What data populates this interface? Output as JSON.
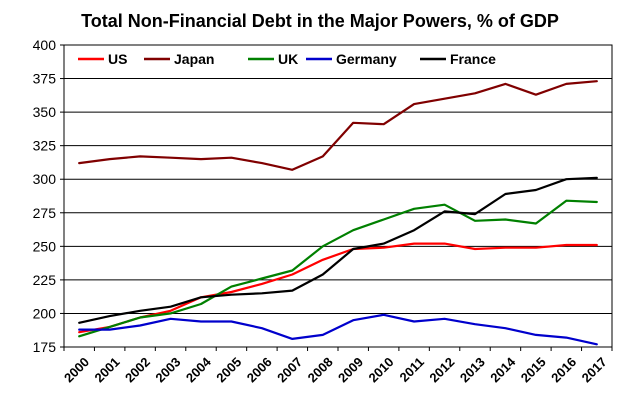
{
  "chart_data": {
    "type": "line",
    "title": "Total Non-Financial Debt in the Major Powers, % of GDP",
    "xlabel": "",
    "ylabel": "",
    "categories": [
      "2000",
      "2001",
      "2002",
      "2003",
      "2004",
      "2005",
      "2006",
      "2007",
      "2008",
      "2009",
      "2010",
      "2011",
      "2012",
      "2013",
      "2014",
      "2015",
      "2016",
      "2017"
    ],
    "ylim": [
      175,
      400
    ],
    "yticks": [
      "175",
      "200",
      "225",
      "250",
      "275",
      "300",
      "325",
      "350",
      "375",
      "400"
    ],
    "grid": true,
    "legend_position": "top",
    "series": [
      {
        "name": "US",
        "color": "#ff0000",
        "values": [
          186,
          190,
          197,
          202,
          212,
          216,
          222,
          229,
          240,
          248,
          249,
          252,
          252,
          248,
          249,
          249,
          251,
          251
        ]
      },
      {
        "name": "Japan",
        "color": "#800000",
        "values": [
          312,
          315,
          317,
          316,
          315,
          316,
          312,
          307,
          317,
          342,
          341,
          356,
          360,
          364,
          371,
          363,
          371,
          373
        ]
      },
      {
        "name": "UK",
        "color": "#008000",
        "values": [
          183,
          190,
          197,
          200,
          207,
          220,
          226,
          232,
          250,
          262,
          270,
          278,
          281,
          269,
          270,
          267,
          284,
          283
        ]
      },
      {
        "name": "Germany",
        "color": "#0000cc",
        "values": [
          188,
          188,
          191,
          196,
          194,
          194,
          189,
          181,
          184,
          195,
          199,
          194,
          196,
          192,
          189,
          184,
          182,
          177
        ]
      },
      {
        "name": "France",
        "color": "#000000",
        "values": [
          193,
          198,
          202,
          205,
          212,
          214,
          215,
          217,
          229,
          248,
          252,
          262,
          276,
          274,
          289,
          292,
          300,
          301
        ]
      }
    ]
  }
}
